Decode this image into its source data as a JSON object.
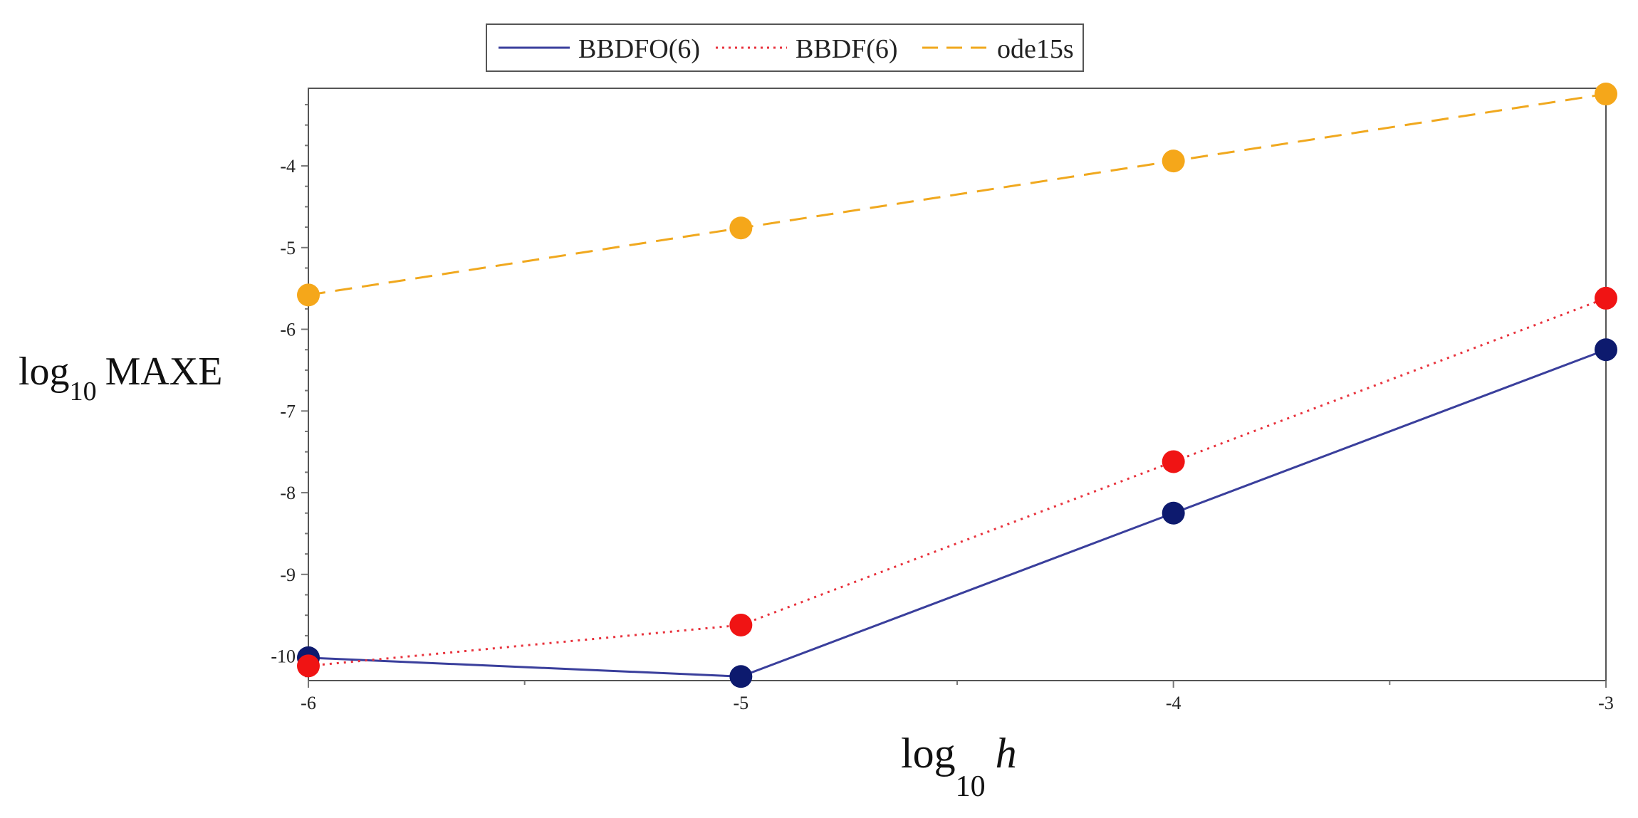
{
  "chart_data": {
    "type": "line",
    "title": "",
    "xlabel": {
      "base": "log",
      "sub": "10",
      "var": "h"
    },
    "ylabel": {
      "base": "log",
      "sub": "10",
      "var": "MAXE"
    },
    "xlim": [
      -6,
      -3
    ],
    "ylim": [
      -10.3,
      -3.05
    ],
    "x_ticks": [
      -6,
      -5,
      -4,
      -3
    ],
    "y_ticks": [
      -4,
      -5,
      -6,
      -7,
      -8,
      -9,
      -10
    ],
    "x": [
      -6,
      -5,
      -4,
      -3
    ],
    "legend_position": "top-center",
    "grid": false,
    "series": [
      {
        "name": "BBDFO(6)",
        "values": [
          -10.02,
          -10.25,
          -8.25,
          -6.25
        ],
        "line_color": "#3a3f9c",
        "marker_color": "#0d1a6e",
        "style": "solid"
      },
      {
        "name": "BBDF(6)",
        "values": [
          -10.12,
          -9.62,
          -7.62,
          -5.62
        ],
        "line_color": "#e8323c",
        "marker_color": "#f01414",
        "style": "dotted"
      },
      {
        "name": "ode15s",
        "values": [
          -5.58,
          -4.76,
          -3.94,
          -3.12
        ],
        "line_color": "#f0a81e",
        "marker_color": "#f5a71a",
        "style": "dashed"
      }
    ]
  }
}
